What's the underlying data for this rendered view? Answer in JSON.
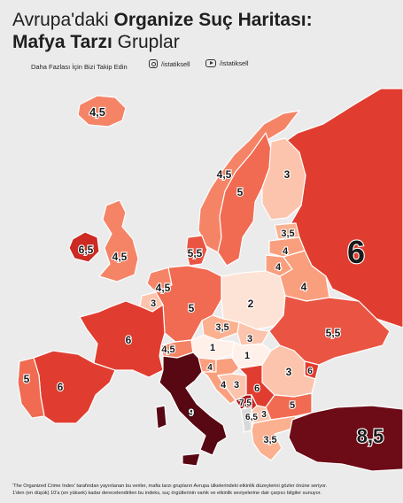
{
  "header": {
    "title_regular_1": "Avrupa'daki ",
    "title_bold_1": "Organize Suç Haritası:",
    "title_bold_2": "Mafya Tarzı",
    "title_regular_2": " Gruplar",
    "follow_text": "Daha  Fazlası İçin Bizi Takip Edin",
    "instagram_handle": "/istatiksell",
    "youtube_handle": "/istatiksell"
  },
  "colors": {
    "background": "#ebebeb",
    "sea": "#ebebeb",
    "border": "#ffffff",
    "scale": {
      "1": "#fff1ea",
      "2": "#fde3d6",
      "3": "#fcc4ac",
      "3.5": "#fbb08f",
      "4": "#f99f7e",
      "4.5": "#f58467",
      "5": "#f06b52",
      "5.5": "#ea5442",
      "6": "#e03d30",
      "6.5": "#cc2a22",
      "7.5": "#a8141e",
      "8.5": "#6d0b17",
      "9": "#570812"
    }
  },
  "map_values": [
    {
      "name": "Iceland",
      "label": "4,5",
      "value": 4.5
    },
    {
      "name": "Norway",
      "label": "4,5",
      "value": 4.5
    },
    {
      "name": "Sweden",
      "label": "5",
      "value": 5
    },
    {
      "name": "Finland",
      "label": "3",
      "value": 3
    },
    {
      "name": "Russia",
      "label": "6",
      "value": 6
    },
    {
      "name": "Estonia",
      "label": "3,5",
      "value": 3.5
    },
    {
      "name": "Latvia",
      "label": "4",
      "value": 4
    },
    {
      "name": "Lithuania",
      "label": "4",
      "value": 4
    },
    {
      "name": "Belarus",
      "label": "4",
      "value": 4
    },
    {
      "name": "Ireland",
      "label": "6,5",
      "value": 6.5
    },
    {
      "name": "United Kingdom",
      "label": "4,5",
      "value": 4.5
    },
    {
      "name": "Denmark",
      "label": "5,5",
      "value": 5.5
    },
    {
      "name": "Netherlands",
      "label": "4,5",
      "value": 4.5
    },
    {
      "name": "Belgium",
      "label": "3",
      "value": 3
    },
    {
      "name": "Germany",
      "label": "5",
      "value": 5
    },
    {
      "name": "Poland",
      "label": "2",
      "value": 2
    },
    {
      "name": "Czechia",
      "label": "3,5",
      "value": 3.5
    },
    {
      "name": "Slovakia",
      "label": "3",
      "value": 3
    },
    {
      "name": "Ukraine",
      "label": "5,5",
      "value": 5.5
    },
    {
      "name": "France",
      "label": "6",
      "value": 6
    },
    {
      "name": "Switzerland",
      "label": "4,5",
      "value": 4.5
    },
    {
      "name": "Austria",
      "label": "1",
      "value": 1
    },
    {
      "name": "Hungary",
      "label": "1",
      "value": 1
    },
    {
      "name": "Moldova",
      "label": "6",
      "value": 6
    },
    {
      "name": "Romania",
      "label": "3",
      "value": 3
    },
    {
      "name": "Slovenia",
      "label": "4",
      "value": 4
    },
    {
      "name": "Croatia",
      "label": "4",
      "value": 4
    },
    {
      "name": "Bosnia and Herzegovina",
      "label": "3",
      "value": 3
    },
    {
      "name": "Serbia",
      "label": "6",
      "value": 6
    },
    {
      "name": "Montenegro",
      "label": "7,5",
      "value": 7.5
    },
    {
      "name": "Kosovo",
      "label": "6,5",
      "value": 6.5
    },
    {
      "name": "North Macedonia",
      "label": "3",
      "value": 3
    },
    {
      "name": "Bulgaria",
      "label": "5",
      "value": 5
    },
    {
      "name": "Greece",
      "label": "3,5",
      "value": 3.5
    },
    {
      "name": "Portugal",
      "label": "5",
      "value": 5
    },
    {
      "name": "Spain",
      "label": "6",
      "value": 6
    },
    {
      "name": "Italy",
      "label": "9",
      "value": 9
    },
    {
      "name": "Turkey",
      "label": "8,5",
      "value": 8.5
    }
  ],
  "footnote_line_1": "'The Organized Crime Index' tarafından yayınlanan bu veriler, mafia tarzı grupların Avrupa ülkelerindeki etkinlik düzeylerini gözler önüne seriyor.",
  "footnote_line_2": "1'den (en düşük) 10'a (en yüksek) kadar derecelendirilen bu indeks, suç örgütlerinin varlık ve etkinlik seviyelerine dair çarpıcı bilgiler sunuyor."
}
